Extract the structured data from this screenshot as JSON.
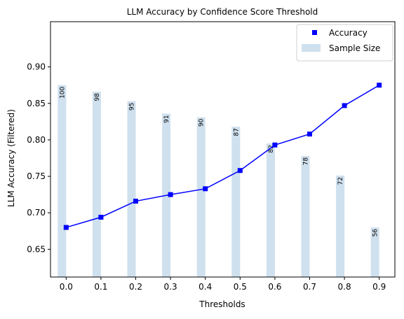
{
  "chart_data": {
    "type": "line",
    "title": "LLM Accuracy by Confidence Score Threshold",
    "xlabel": "Thresholds",
    "ylabel": "LLM Accuracy (Filtered)",
    "x": [
      0.0,
      0.1,
      0.2,
      0.3,
      0.4,
      0.5,
      0.6,
      0.7,
      0.8,
      0.9
    ],
    "x_tick_labels": [
      "0.0",
      "0.1",
      "0.2",
      "0.3",
      "0.4",
      "0.5",
      "0.6",
      "0.7",
      "0.8",
      "0.9"
    ],
    "xlim": [
      -0.045,
      0.945
    ],
    "ylim": [
      0.612,
      0.962
    ],
    "y_ticks": [
      0.65,
      0.7,
      0.75,
      0.8,
      0.85,
      0.9
    ],
    "y_tick_labels": [
      "0.65",
      "0.70",
      "0.75",
      "0.80",
      "0.85",
      "0.90"
    ],
    "grid": false,
    "legend_position": "upper-right",
    "series": [
      {
        "name": "Accuracy",
        "kind": "line-with-square-markers",
        "color": "#0000ff",
        "values": [
          0.68,
          0.694,
          0.716,
          0.725,
          0.733,
          0.758,
          0.793,
          0.808,
          0.847,
          0.875
        ]
      },
      {
        "name": "Sample Size",
        "kind": "bar-secondary-hidden-axis",
        "color": "#cfe0ee",
        "values": [
          100,
          98,
          95,
          91,
          90,
          87,
          82,
          78,
          72,
          56
        ],
        "bar_tops_on_primary_axis": [
          0.875,
          0.866,
          0.853,
          0.836,
          0.831,
          0.818,
          0.795,
          0.778,
          0.751,
          0.68
        ],
        "bar_labels": [
          "100",
          "98",
          "95",
          "91",
          "90",
          "87",
          "82",
          "78",
          "72",
          "56"
        ]
      }
    ]
  }
}
